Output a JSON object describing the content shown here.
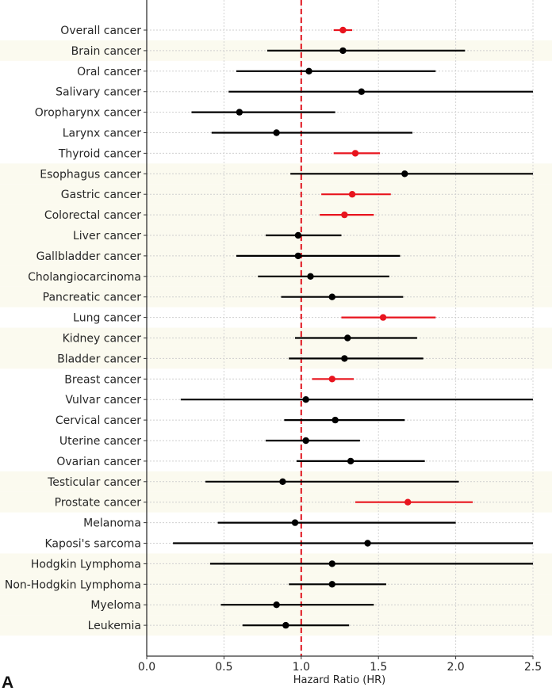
{
  "panel_label": "A",
  "chart_data": {
    "type": "forest",
    "title": "",
    "xlabel": "Hazard Ratio (HR)",
    "ylabel": "",
    "xlim": [
      0.0,
      2.5
    ],
    "xticks": [
      0.0,
      0.5,
      1.0,
      1.5,
      2.0,
      2.5
    ],
    "xtick_labels": [
      "0.0",
      "0.5",
      "1.0",
      "1.5",
      "2.0",
      "2.5"
    ],
    "reference_line": {
      "x": 1.0,
      "style": "dashed",
      "color": "#e0141e"
    },
    "grid": true,
    "colors": {
      "significant": "#e8141e",
      "nonsignificant": "#000000",
      "band": "#fbfaef"
    },
    "rows": [
      {
        "label": "Overall cancer",
        "hr": 1.27,
        "lo": 1.21,
        "hi": 1.33,
        "significant": true,
        "band": false
      },
      {
        "label": "Brain cancer",
        "hr": 1.27,
        "lo": 0.78,
        "hi": 2.06,
        "significant": false,
        "band": true
      },
      {
        "label": "Oral cancer",
        "hr": 1.05,
        "lo": 0.58,
        "hi": 1.87,
        "significant": false,
        "band": false
      },
      {
        "label": "Salivary cancer",
        "hr": 1.39,
        "lo": 0.53,
        "hi": 2.5,
        "significant": false,
        "band": false
      },
      {
        "label": "Oropharynx cancer",
        "hr": 0.6,
        "lo": 0.29,
        "hi": 1.22,
        "significant": false,
        "band": false
      },
      {
        "label": "Larynx cancer",
        "hr": 0.84,
        "lo": 0.42,
        "hi": 1.72,
        "significant": false,
        "band": false
      },
      {
        "label": "Thyroid cancer",
        "hr": 1.35,
        "lo": 1.21,
        "hi": 1.51,
        "significant": true,
        "band": false
      },
      {
        "label": "Esophagus cancer",
        "hr": 1.67,
        "lo": 0.93,
        "hi": 2.5,
        "significant": false,
        "band": true
      },
      {
        "label": "Gastric cancer",
        "hr": 1.33,
        "lo": 1.13,
        "hi": 1.58,
        "significant": true,
        "band": true
      },
      {
        "label": "Colorectal cancer",
        "hr": 1.28,
        "lo": 1.12,
        "hi": 1.47,
        "significant": true,
        "band": true
      },
      {
        "label": "Liver cancer",
        "hr": 0.98,
        "lo": 0.77,
        "hi": 1.26,
        "significant": false,
        "band": true
      },
      {
        "label": "Gallbladder cancer",
        "hr": 0.98,
        "lo": 0.58,
        "hi": 1.64,
        "significant": false,
        "band": true
      },
      {
        "label": "Cholangiocarcinoma",
        "hr": 1.06,
        "lo": 0.72,
        "hi": 1.57,
        "significant": false,
        "band": true
      },
      {
        "label": "Pancreatic cancer",
        "hr": 1.2,
        "lo": 0.87,
        "hi": 1.66,
        "significant": false,
        "band": true
      },
      {
        "label": "Lung cancer",
        "hr": 1.53,
        "lo": 1.26,
        "hi": 1.87,
        "significant": true,
        "band": false
      },
      {
        "label": "Kidney cancer",
        "hr": 1.3,
        "lo": 0.96,
        "hi": 1.75,
        "significant": false,
        "band": true
      },
      {
        "label": "Bladder cancer",
        "hr": 1.28,
        "lo": 0.92,
        "hi": 1.79,
        "significant": false,
        "band": true
      },
      {
        "label": "Breast cancer",
        "hr": 1.2,
        "lo": 1.07,
        "hi": 1.34,
        "significant": true,
        "band": false
      },
      {
        "label": "Vulvar cancer",
        "hr": 1.03,
        "lo": 0.22,
        "hi": 2.5,
        "significant": false,
        "band": false
      },
      {
        "label": "Cervical cancer",
        "hr": 1.22,
        "lo": 0.89,
        "hi": 1.67,
        "significant": false,
        "band": false
      },
      {
        "label": "Uterine cancer",
        "hr": 1.03,
        "lo": 0.77,
        "hi": 1.38,
        "significant": false,
        "band": false
      },
      {
        "label": "Ovarian cancer",
        "hr": 1.32,
        "lo": 0.97,
        "hi": 1.8,
        "significant": false,
        "band": false
      },
      {
        "label": "Testicular cancer",
        "hr": 0.88,
        "lo": 0.38,
        "hi": 2.02,
        "significant": false,
        "band": true
      },
      {
        "label": "Prostate cancer",
        "hr": 1.69,
        "lo": 1.35,
        "hi": 2.11,
        "significant": true,
        "band": true
      },
      {
        "label": "Melanoma",
        "hr": 0.96,
        "lo": 0.46,
        "hi": 2.0,
        "significant": false,
        "band": false
      },
      {
        "label": "Kaposi's sarcoma",
        "hr": 1.43,
        "lo": 0.17,
        "hi": 2.5,
        "significant": false,
        "band": false
      },
      {
        "label": "Hodgkin Lymphoma",
        "hr": 1.2,
        "lo": 0.41,
        "hi": 2.5,
        "significant": false,
        "band": true
      },
      {
        "label": "Non-Hodgkin Lymphoma",
        "hr": 1.2,
        "lo": 0.92,
        "hi": 1.55,
        "significant": false,
        "band": true
      },
      {
        "label": "Myeloma",
        "hr": 0.84,
        "lo": 0.48,
        "hi": 1.47,
        "significant": false,
        "band": true
      },
      {
        "label": "Leukemia",
        "hr": 0.9,
        "lo": 0.62,
        "hi": 1.31,
        "significant": false,
        "band": true
      }
    ]
  }
}
